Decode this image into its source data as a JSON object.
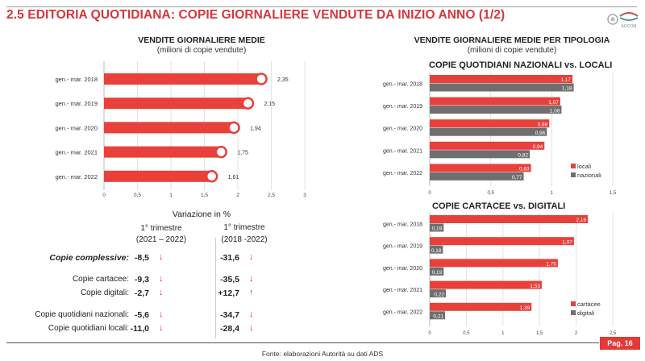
{
  "header": {
    "title": "2.5 EDITORIA QUOTIDIANA: COPIE GIORNALIERE VENDUTE DA INIZIO ANNO (1/2)",
    "logo_icon": "agcom-logo-icon",
    "logo_text": "AGCOM"
  },
  "colors": {
    "accent_red": "#e8403a",
    "title_red": "#d8353b",
    "gray_bar": "#6f6f6f",
    "arrow_down": "#e0302b",
    "arrow_up": "#2e8b57"
  },
  "left_chart": {
    "title": "VENDITE GIORNALIERE MEDIE",
    "subtitle": "(milioni di copie vendute)"
  },
  "right_section": {
    "title": "VENDITE GIORNALIERE MEDIE PER TIPOLOGIA",
    "subtitle": "(milioni di copie vendute)"
  },
  "chart_data": [
    {
      "type": "bar",
      "orientation": "horizontal",
      "title": "VENDITE GIORNALIERE MEDIE",
      "subtitle": "(milioni di copie vendute)",
      "categories": [
        "gen.- mar. 2018",
        "gen.- mar. 2019",
        "gen.- mar. 2020",
        "gen.- mar. 2021",
        "gen.- mar. 2022"
      ],
      "values": [
        2.35,
        2.15,
        1.94,
        1.75,
        1.61
      ],
      "value_labels": [
        "2,35",
        "2,15",
        "1,94",
        "1,75",
        "1,61"
      ],
      "xlim": [
        0,
        3
      ],
      "xticks": [
        0,
        0.5,
        1,
        1.5,
        2,
        2.5,
        3
      ],
      "xtick_labels": [
        "0",
        "0,5",
        "1",
        "1,5",
        "2",
        "2,5",
        "3"
      ],
      "grid": true,
      "marker": "circle-at-bar-end"
    },
    {
      "type": "bar",
      "orientation": "horizontal",
      "title": "COPIE QUOTIDIANI NAZIONALI vs. LOCALI",
      "categories": [
        "gen.- mar. 2018",
        "gen.- mar. 2019",
        "gen.- mar. 2020",
        "gen.- mar. 2021",
        "gen.- mar. 2022"
      ],
      "series": [
        {
          "name": "locali",
          "color": "#e8403a",
          "values": [
            1.17,
            1.07,
            0.98,
            0.94,
            0.83
          ],
          "labels": [
            "1,17",
            "1,07",
            "0,98",
            "0,94",
            "0,83"
          ]
        },
        {
          "name": "nazionali",
          "color": "#6f6f6f",
          "values": [
            1.18,
            1.08,
            0.96,
            0.82,
            0.77
          ],
          "labels": [
            "1,18",
            "1,08",
            "0,96",
            "0,82",
            "0,77"
          ]
        }
      ],
      "xlim": [
        0,
        1.5
      ],
      "xticks": [
        0,
        0.5,
        1,
        1.5
      ],
      "xtick_labels": [
        "0",
        "0,5",
        "1",
        "1,5"
      ],
      "grid": true,
      "legend": "bottom-right"
    },
    {
      "type": "bar",
      "orientation": "horizontal",
      "title": "COPIE CARTACEE vs. DIGITALI",
      "categories": [
        "gen.- mar. 2018",
        "gen.- mar. 2019",
        "gen.- mar. 2020",
        "gen.- mar. 2021",
        "gen.- mar. 2022"
      ],
      "series": [
        {
          "name": "cartacee",
          "color": "#e8403a",
          "values": [
            2.16,
            1.97,
            1.75,
            1.53,
            1.39
          ],
          "labels": [
            "2,16",
            "1,97",
            "1,75",
            "1,53",
            "1,39"
          ]
        },
        {
          "name": "digitali",
          "color": "#6f6f6f",
          "values": [
            0.19,
            0.18,
            0.19,
            0.22,
            0.21
          ],
          "labels": [
            "0,19",
            "0,18",
            "0,19",
            "0,22",
            "0,21"
          ]
        }
      ],
      "xlim": [
        0,
        2.5
      ],
      "xticks": [
        0,
        0.5,
        1,
        1.5,
        2,
        2.5
      ],
      "xtick_labels": [
        "0",
        "0,5",
        "1",
        "1,5",
        "2",
        "2,5"
      ],
      "grid": true,
      "legend": "bottom-right"
    }
  ],
  "variation": {
    "title": "Variazione in %",
    "columns": [
      {
        "line1": "1° trimestre",
        "line2": "(2021 – 2022)"
      },
      {
        "line1": "1° trimestre",
        "line2": "(2018 -2022)"
      }
    ],
    "rows": [
      {
        "label": "Copie complessive:",
        "emphasis": true,
        "v1": "-8,5",
        "d1": "down",
        "v2": "-31,6",
        "d2": "down"
      },
      {
        "label": "Copie cartacee:",
        "emphasis": false,
        "v1": "-9,3",
        "d1": "down",
        "v2": "-35,5",
        "d2": "down"
      },
      {
        "label": "Copie digitali:",
        "emphasis": false,
        "v1": "-2,7",
        "d1": "down",
        "v2": "+12,7",
        "d2": "up"
      },
      {
        "label": "Copie quotidiani nazionali:",
        "emphasis": false,
        "v1": "-5,6",
        "d1": "down",
        "v2": "-34,7",
        "d2": "down"
      },
      {
        "label": "Copie quotidiani locali:",
        "emphasis": false,
        "v1": "-11,0",
        "d1": "down",
        "v2": "-28,4",
        "d2": "down"
      }
    ]
  },
  "footer": {
    "page_label": "Pag. 16",
    "source": "Fonte: elaborazioni Autorità su dati ADS"
  }
}
